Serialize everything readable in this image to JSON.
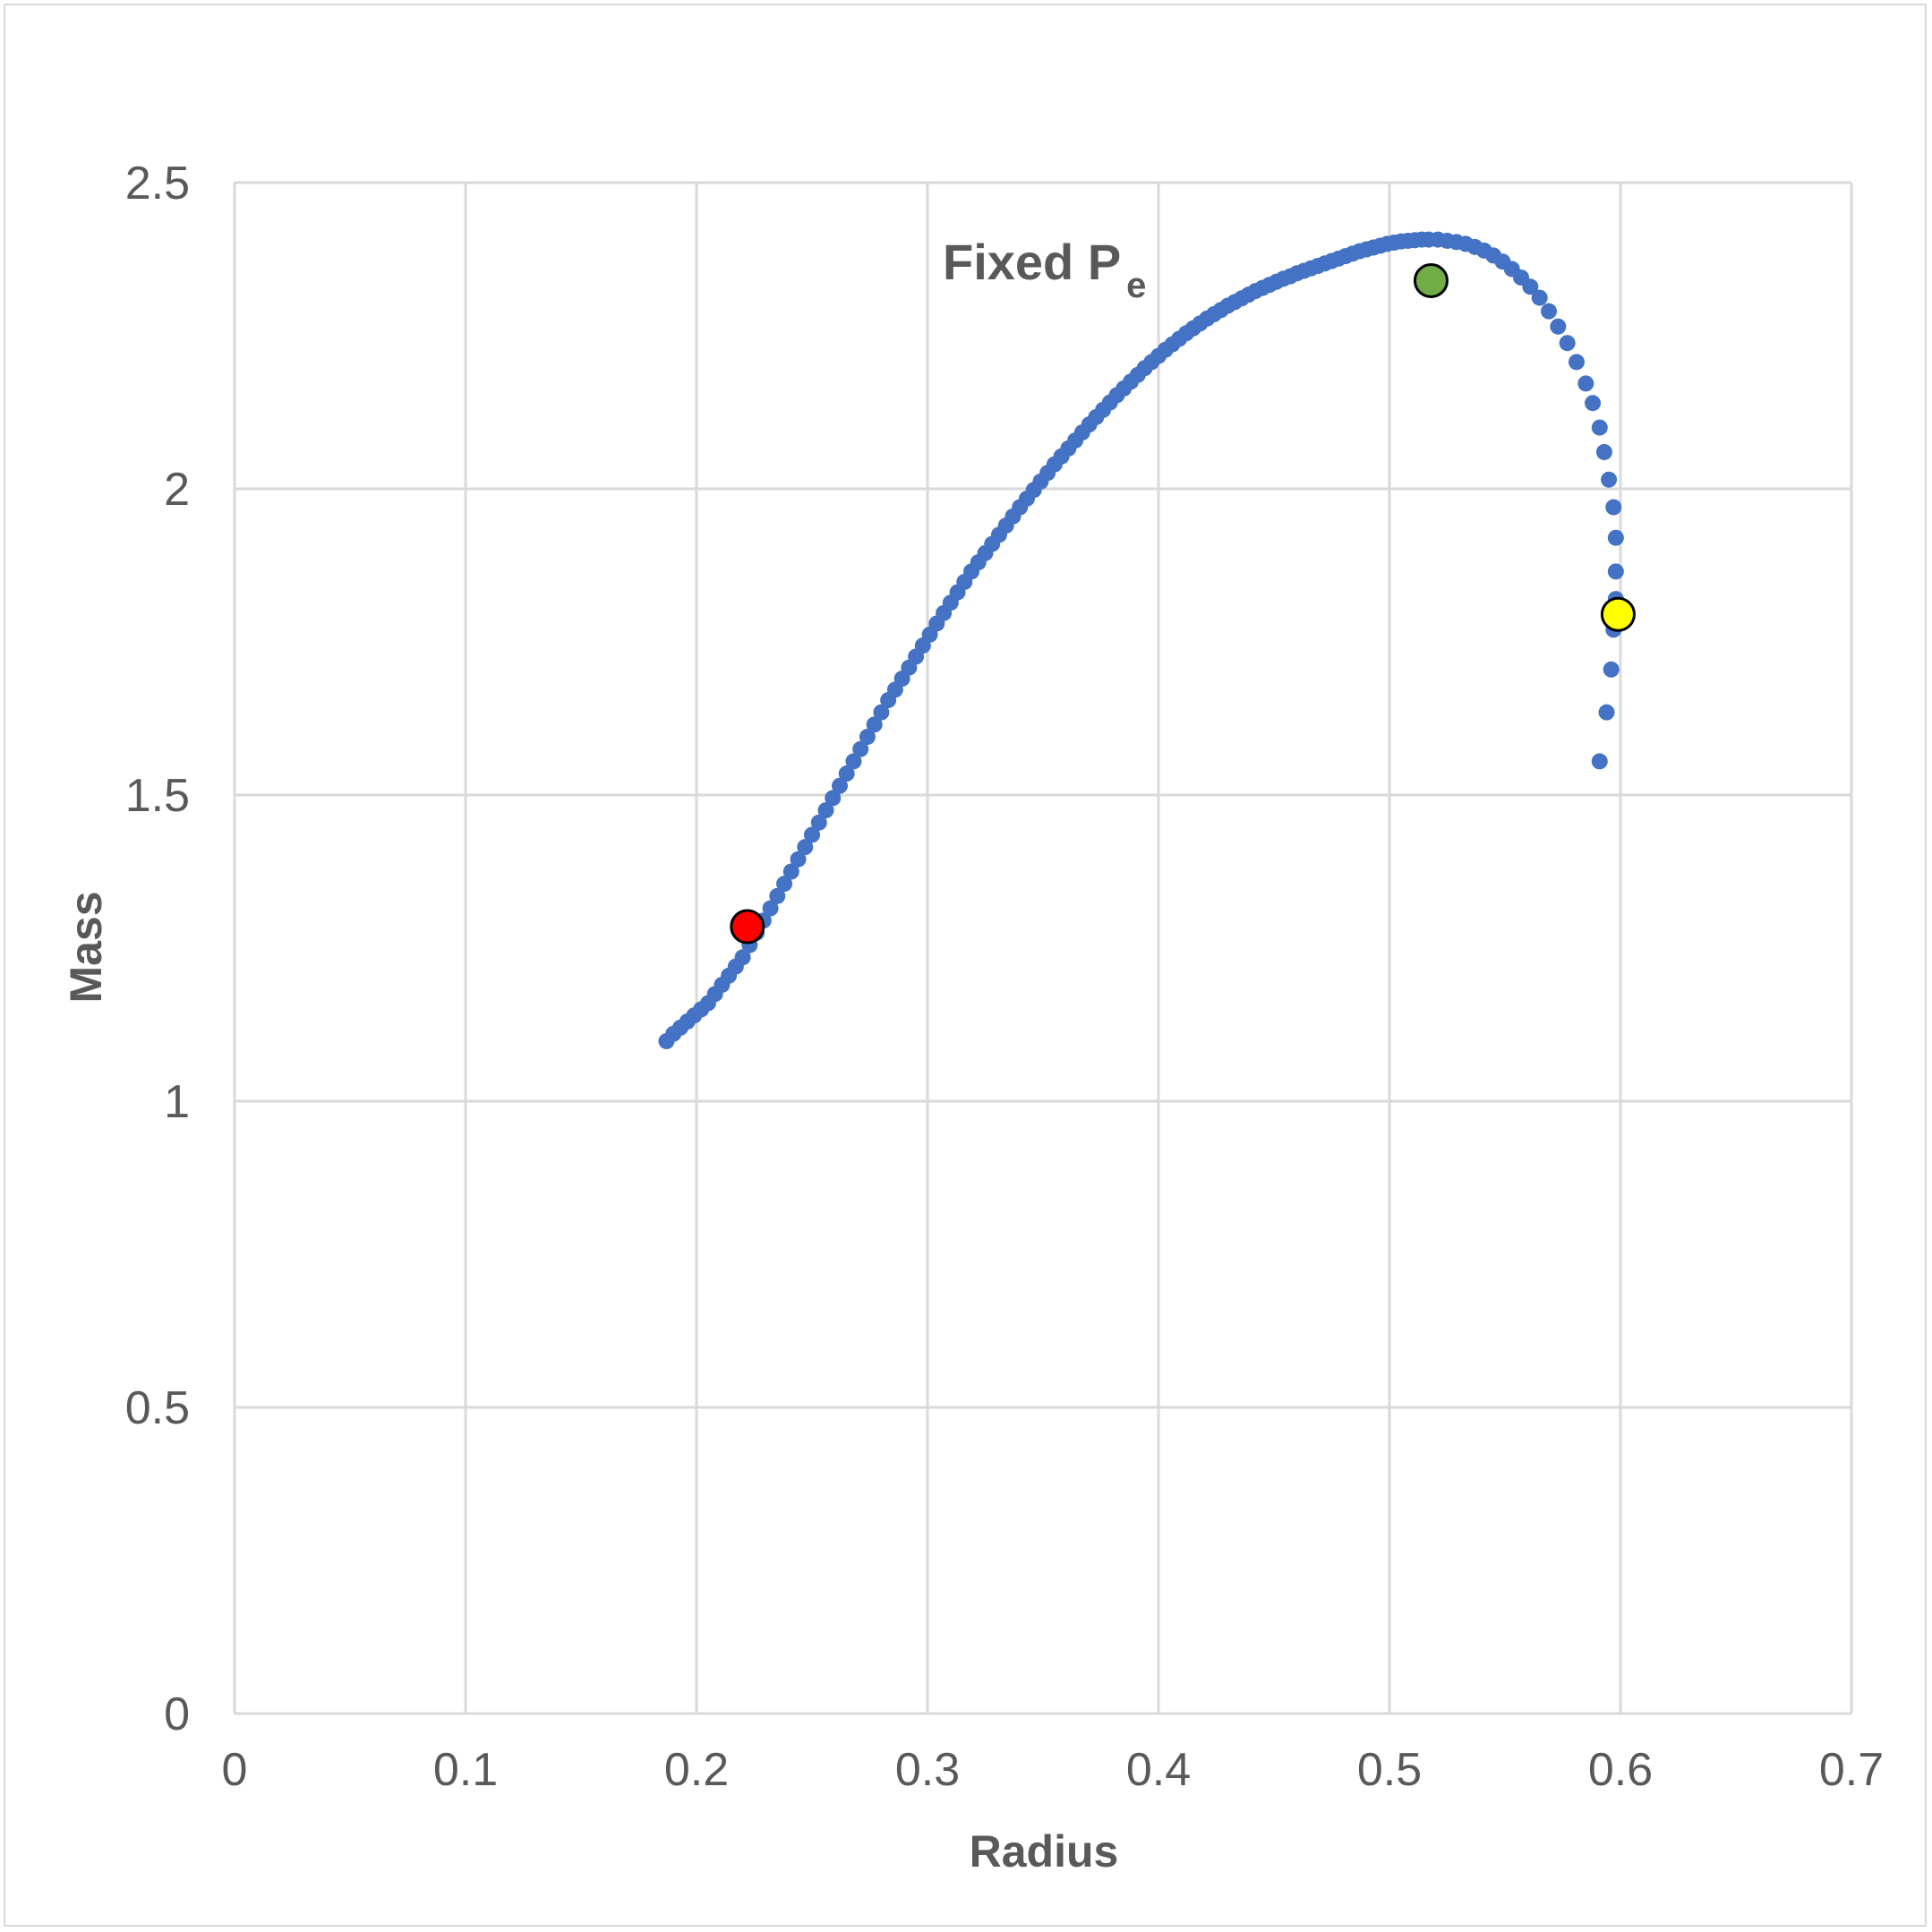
{
  "chart_data": {
    "type": "scatter",
    "title": "",
    "xlabel": "Radius",
    "ylabel": "Mass",
    "xlim": [
      0,
      0.7
    ],
    "ylim": [
      0,
      2.5
    ],
    "xticks": [
      "0",
      "0.1",
      "0.2",
      "0.3",
      "0.4",
      "0.5",
      "0.6",
      "0.7"
    ],
    "yticks": [
      "0",
      "0.5",
      "1",
      "1.5",
      "2",
      "2.5"
    ],
    "grid": true,
    "legend": "none",
    "annotation": {
      "text": "Fixed P",
      "subscript": "e"
    },
    "series_color": "#4472c4",
    "curve_points": [
      {
        "r": 0.187,
        "m": 1.098
      },
      {
        "r": 0.19,
        "m": 1.11
      },
      {
        "r": 0.193,
        "m": 1.12
      },
      {
        "r": 0.196,
        "m": 1.13
      },
      {
        "r": 0.199,
        "m": 1.14
      },
      {
        "r": 0.202,
        "m": 1.15
      },
      {
        "r": 0.205,
        "m": 1.16
      },
      {
        "r": 0.208,
        "m": 1.175
      },
      {
        "r": 0.211,
        "m": 1.19
      },
      {
        "r": 0.214,
        "m": 1.205
      },
      {
        "r": 0.217,
        "m": 1.22
      },
      {
        "r": 0.22,
        "m": 1.235
      },
      {
        "r": 0.223,
        "m": 1.255
      },
      {
        "r": 0.226,
        "m": 1.275
      },
      {
        "r": 0.229,
        "m": 1.295
      },
      {
        "r": 0.232,
        "m": 1.315
      },
      {
        "r": 0.235,
        "m": 1.335
      },
      {
        "r": 0.238,
        "m": 1.355
      },
      {
        "r": 0.241,
        "m": 1.375
      },
      {
        "r": 0.244,
        "m": 1.395
      },
      {
        "r": 0.247,
        "m": 1.415
      },
      {
        "r": 0.25,
        "m": 1.435
      },
      {
        "r": 0.253,
        "m": 1.455
      },
      {
        "r": 0.256,
        "m": 1.475
      },
      {
        "r": 0.259,
        "m": 1.495
      },
      {
        "r": 0.262,
        "m": 1.515
      },
      {
        "r": 0.265,
        "m": 1.535
      },
      {
        "r": 0.268,
        "m": 1.555
      },
      {
        "r": 0.271,
        "m": 1.575
      },
      {
        "r": 0.274,
        "m": 1.595
      },
      {
        "r": 0.277,
        "m": 1.615
      },
      {
        "r": 0.28,
        "m": 1.635
      },
      {
        "r": 0.283,
        "m": 1.655
      },
      {
        "r": 0.286,
        "m": 1.672
      },
      {
        "r": 0.289,
        "m": 1.69
      },
      {
        "r": 0.292,
        "m": 1.708
      },
      {
        "r": 0.295,
        "m": 1.726
      },
      {
        "r": 0.298,
        "m": 1.744
      },
      {
        "r": 0.301,
        "m": 1.762
      },
      {
        "r": 0.304,
        "m": 1.78
      },
      {
        "r": 0.307,
        "m": 1.797
      },
      {
        "r": 0.31,
        "m": 1.814
      },
      {
        "r": 0.313,
        "m": 1.831
      },
      {
        "r": 0.316,
        "m": 1.848
      },
      {
        "r": 0.319,
        "m": 1.865
      },
      {
        "r": 0.322,
        "m": 1.88
      },
      {
        "r": 0.325,
        "m": 1.895
      },
      {
        "r": 0.328,
        "m": 1.91
      },
      {
        "r": 0.331,
        "m": 1.925
      },
      {
        "r": 0.334,
        "m": 1.94
      },
      {
        "r": 0.337,
        "m": 1.955
      },
      {
        "r": 0.34,
        "m": 1.97
      },
      {
        "r": 0.343,
        "m": 1.984
      },
      {
        "r": 0.346,
        "m": 1.998
      },
      {
        "r": 0.349,
        "m": 2.012
      },
      {
        "r": 0.352,
        "m": 2.026
      },
      {
        "r": 0.355,
        "m": 2.04
      },
      {
        "r": 0.358,
        "m": 2.053
      },
      {
        "r": 0.361,
        "m": 2.066
      },
      {
        "r": 0.364,
        "m": 2.079
      },
      {
        "r": 0.367,
        "m": 2.092
      },
      {
        "r": 0.37,
        "m": 2.105
      },
      {
        "r": 0.373,
        "m": 2.117
      },
      {
        "r": 0.376,
        "m": 2.129
      },
      {
        "r": 0.379,
        "m": 2.141
      },
      {
        "r": 0.382,
        "m": 2.153
      },
      {
        "r": 0.385,
        "m": 2.164
      },
      {
        "r": 0.388,
        "m": 2.175
      },
      {
        "r": 0.391,
        "m": 2.186
      },
      {
        "r": 0.394,
        "m": 2.197
      },
      {
        "r": 0.397,
        "m": 2.207
      },
      {
        "r": 0.4,
        "m": 2.217
      },
      {
        "r": 0.403,
        "m": 2.227
      },
      {
        "r": 0.406,
        "m": 2.236
      },
      {
        "r": 0.409,
        "m": 2.245
      },
      {
        "r": 0.412,
        "m": 2.254
      },
      {
        "r": 0.415,
        "m": 2.262
      },
      {
        "r": 0.418,
        "m": 2.27
      },
      {
        "r": 0.421,
        "m": 2.278
      },
      {
        "r": 0.424,
        "m": 2.285
      },
      {
        "r": 0.427,
        "m": 2.292
      },
      {
        "r": 0.43,
        "m": 2.299
      },
      {
        "r": 0.433,
        "m": 2.305
      },
      {
        "r": 0.436,
        "m": 2.311
      },
      {
        "r": 0.439,
        "m": 2.317
      },
      {
        "r": 0.442,
        "m": 2.323
      },
      {
        "r": 0.445,
        "m": 2.328
      },
      {
        "r": 0.448,
        "m": 2.333
      },
      {
        "r": 0.451,
        "m": 2.338
      },
      {
        "r": 0.454,
        "m": 2.343
      },
      {
        "r": 0.457,
        "m": 2.347
      },
      {
        "r": 0.46,
        "m": 2.352
      },
      {
        "r": 0.463,
        "m": 2.356
      },
      {
        "r": 0.466,
        "m": 2.36
      },
      {
        "r": 0.469,
        "m": 2.364
      },
      {
        "r": 0.472,
        "m": 2.368
      },
      {
        "r": 0.475,
        "m": 2.372
      },
      {
        "r": 0.478,
        "m": 2.376
      },
      {
        "r": 0.481,
        "m": 2.38
      },
      {
        "r": 0.484,
        "m": 2.384
      },
      {
        "r": 0.487,
        "m": 2.388
      },
      {
        "r": 0.49,
        "m": 2.391
      },
      {
        "r": 0.493,
        "m": 2.394
      },
      {
        "r": 0.496,
        "m": 2.397
      },
      {
        "r": 0.499,
        "m": 2.4
      },
      {
        "r": 0.502,
        "m": 2.402
      },
      {
        "r": 0.505,
        "m": 2.404
      },
      {
        "r": 0.508,
        "m": 2.405
      },
      {
        "r": 0.511,
        "m": 2.406
      },
      {
        "r": 0.514,
        "m": 2.407
      },
      {
        "r": 0.517,
        "m": 2.407
      },
      {
        "r": 0.521,
        "m": 2.407
      },
      {
        "r": 0.525,
        "m": 2.405
      },
      {
        "r": 0.529,
        "m": 2.403
      },
      {
        "r": 0.533,
        "m": 2.4
      },
      {
        "r": 0.537,
        "m": 2.395
      },
      {
        "r": 0.541,
        "m": 2.389
      },
      {
        "r": 0.545,
        "m": 2.381
      },
      {
        "r": 0.549,
        "m": 2.371
      },
      {
        "r": 0.553,
        "m": 2.359
      },
      {
        "r": 0.557,
        "m": 2.345
      },
      {
        "r": 0.561,
        "m": 2.33
      },
      {
        "r": 0.565,
        "m": 2.312
      },
      {
        "r": 0.569,
        "m": 2.29
      },
      {
        "r": 0.573,
        "m": 2.265
      },
      {
        "r": 0.577,
        "m": 2.238
      },
      {
        "r": 0.581,
        "m": 2.207
      },
      {
        "r": 0.585,
        "m": 2.172
      },
      {
        "r": 0.588,
        "m": 2.14
      },
      {
        "r": 0.591,
        "m": 2.1
      },
      {
        "r": 0.593,
        "m": 2.06
      },
      {
        "r": 0.595,
        "m": 2.015
      },
      {
        "r": 0.597,
        "m": 1.97
      },
      {
        "r": 0.598,
        "m": 1.92
      },
      {
        "r": 0.598,
        "m": 1.865
      },
      {
        "r": 0.598,
        "m": 1.82
      },
      {
        "r": 0.597,
        "m": 1.77
      },
      {
        "r": 0.596,
        "m": 1.705
      },
      {
        "r": 0.594,
        "m": 1.635
      },
      {
        "r": 0.591,
        "m": 1.555
      }
    ],
    "highlight_points": [
      {
        "r": 0.222,
        "m": 1.285,
        "color": "#ff0000"
      },
      {
        "r": 0.518,
        "m": 2.34,
        "color": "#70ad47"
      },
      {
        "r": 0.599,
        "m": 1.795,
        "color": "#ffff00"
      }
    ]
  }
}
